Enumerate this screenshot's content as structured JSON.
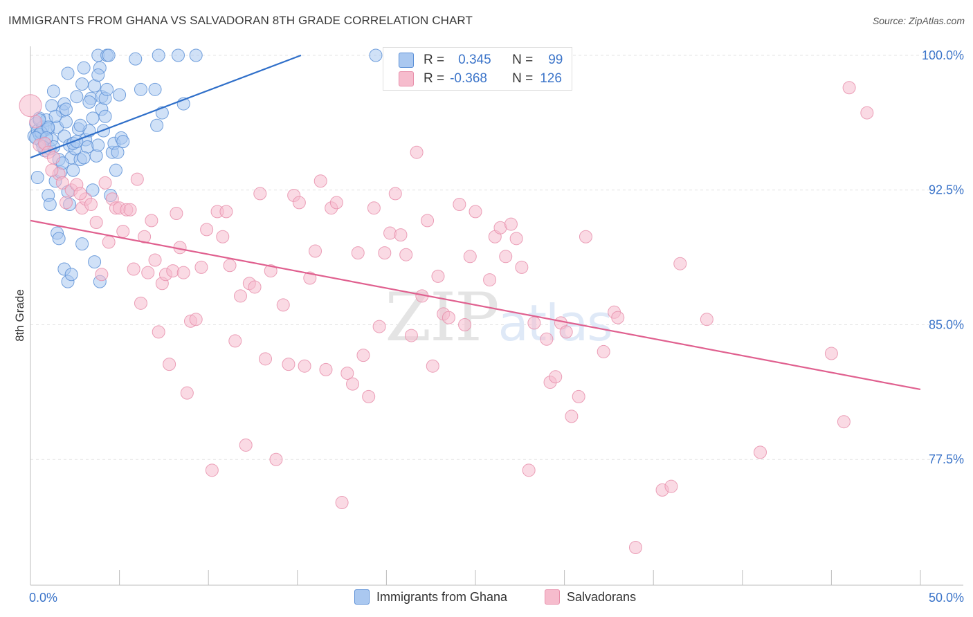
{
  "title": "IMMIGRANTS FROM GHANA VS SALVADORAN 8TH GRADE CORRELATION CHART",
  "source": "Source: ZipAtlas.com",
  "watermark": "ZIPatlas",
  "colors": {
    "blue_fill": "#aac8f0",
    "blue_stroke": "#5b8fd6",
    "blue_line": "#2f6fc9",
    "pink_fill": "#f6bccd",
    "pink_stroke": "#e88fab",
    "pink_line": "#e0608f",
    "tick_label": "#3b74c9",
    "grid": "#e3e3e3"
  },
  "stats": {
    "r_label": "R =",
    "n_label": "N =",
    "series1": {
      "r": "0.345",
      "n": "99"
    },
    "series2": {
      "r": "-0.368",
      "n": "126"
    }
  },
  "legend": {
    "series1": "Immigrants from Ghana",
    "series2": "Salvadorans"
  },
  "chart_data": {
    "type": "scatter",
    "title": "IMMIGRANTS FROM GHANA VS SALVADORAN 8TH GRADE CORRELATION CHART",
    "xlabel": "",
    "ylabel": "8th Grade",
    "xlim": [
      0,
      50
    ],
    "ylim": [
      70.5,
      100.5
    ],
    "x_tick_labels": [
      {
        "value": 0,
        "label": "0.0%"
      },
      {
        "value": 50,
        "label": "50.0%"
      }
    ],
    "y_ticks": [
      {
        "value": 100.0,
        "label": "100.0%"
      },
      {
        "value": 92.5,
        "label": "92.5%"
      },
      {
        "value": 85.0,
        "label": "85.0%"
      },
      {
        "value": 77.5,
        "label": "77.5%"
      }
    ],
    "grid": true,
    "legend_position": "bottom-center",
    "series": [
      {
        "name": "Immigrants from Ghana",
        "color": "#aac8f0",
        "trendline": {
          "x0": 0.0,
          "y0": 94.3,
          "x1": 15.2,
          "y1": 100.0
        },
        "points": [
          [
            0.2,
            95.5
          ],
          [
            0.3,
            96.2
          ],
          [
            0.4,
            95.8
          ],
          [
            0.5,
            96.5
          ],
          [
            0.6,
            95.2
          ],
          [
            0.7,
            96.0
          ],
          [
            0.8,
            94.7
          ],
          [
            0.9,
            96.4
          ],
          [
            0.4,
            93.2
          ],
          [
            0.5,
            95.6
          ],
          [
            1.0,
            95.9
          ],
          [
            1.1,
            94.8
          ],
          [
            1.2,
            95.3
          ],
          [
            1.0,
            92.2
          ],
          [
            1.1,
            91.7
          ],
          [
            1.2,
            97.2
          ],
          [
            1.3,
            98.0
          ],
          [
            1.4,
            93.0
          ],
          [
            1.5,
            96.0
          ],
          [
            1.6,
            94.2
          ],
          [
            1.7,
            93.5
          ],
          [
            1.8,
            96.9
          ],
          [
            1.9,
            97.3
          ],
          [
            2.0,
            96.3
          ],
          [
            1.9,
            95.5
          ],
          [
            2.1,
            92.4
          ],
          [
            2.1,
            99.0
          ],
          [
            2.2,
            95.0
          ],
          [
            2.3,
            94.3
          ],
          [
            2.4,
            93.6
          ],
          [
            2.5,
            94.8
          ],
          [
            2.6,
            97.7
          ],
          [
            2.7,
            95.9
          ],
          [
            2.8,
            94.2
          ],
          [
            2.9,
            98.4
          ],
          [
            3.0,
            99.3
          ],
          [
            3.1,
            95.3
          ],
          [
            3.2,
            94.9
          ],
          [
            3.3,
            95.8
          ],
          [
            3.4,
            97.6
          ],
          [
            3.5,
            96.5
          ],
          [
            3.6,
            98.3
          ],
          [
            3.7,
            94.4
          ],
          [
            3.8,
            95.0
          ],
          [
            3.8,
            100.0
          ],
          [
            3.9,
            99.3
          ],
          [
            4.0,
            97.0
          ],
          [
            4.0,
            97.7
          ],
          [
            4.1,
            95.8
          ],
          [
            4.2,
            96.6
          ],
          [
            4.2,
            97.6
          ],
          [
            4.3,
            98.1
          ],
          [
            4.3,
            100.0
          ],
          [
            4.4,
            100.0
          ],
          [
            4.5,
            92.2
          ],
          [
            4.6,
            94.6
          ],
          [
            4.7,
            95.1
          ],
          [
            4.8,
            93.6
          ],
          [
            4.9,
            94.6
          ],
          [
            5.0,
            97.8
          ],
          [
            5.1,
            95.4
          ],
          [
            5.2,
            95.2
          ],
          [
            5.9,
            99.8
          ],
          [
            6.2,
            98.1
          ],
          [
            7.0,
            98.1
          ],
          [
            7.1,
            96.1
          ],
          [
            7.2,
            100.0
          ],
          [
            7.4,
            96.8
          ],
          [
            8.3,
            100.0
          ],
          [
            8.6,
            97.3
          ],
          [
            9.3,
            100.0
          ],
          [
            19.4,
            100.0
          ],
          [
            1.5,
            90.1
          ],
          [
            1.6,
            89.8
          ],
          [
            1.9,
            88.1
          ],
          [
            2.1,
            87.4
          ],
          [
            2.3,
            87.8
          ],
          [
            2.9,
            89.5
          ],
          [
            3.6,
            88.5
          ],
          [
            3.9,
            87.4
          ],
          [
            2.2,
            91.7
          ],
          [
            3.5,
            92.5
          ],
          [
            0.8,
            95.1
          ],
          [
            1.3,
            94.9
          ],
          [
            2.4,
            95.1
          ],
          [
            0.6,
            95.7
          ],
          [
            1.0,
            96.0
          ],
          [
            0.3,
            95.4
          ],
          [
            0.5,
            96.4
          ],
          [
            1.8,
            94.0
          ],
          [
            2.6,
            95.2
          ],
          [
            3.0,
            94.3
          ],
          [
            0.9,
            95.4
          ],
          [
            1.4,
            96.6
          ],
          [
            2.0,
            97.0
          ],
          [
            2.8,
            96.1
          ],
          [
            3.3,
            97.4
          ],
          [
            3.8,
            98.9
          ],
          [
            0.7,
            94.9
          ]
        ]
      },
      {
        "name": "Salvadorans",
        "color": "#f6bccd",
        "trendline": {
          "x0": 0.0,
          "y0": 90.8,
          "x1": 50.0,
          "y1": 81.4
        },
        "points": [
          [
            0.0,
            97.2
          ],
          [
            0.3,
            96.3
          ],
          [
            0.5,
            95.0
          ],
          [
            0.8,
            95.1
          ],
          [
            1.0,
            94.6
          ],
          [
            1.3,
            94.3
          ],
          [
            1.6,
            93.4
          ],
          [
            1.8,
            92.9
          ],
          [
            2.0,
            91.8
          ],
          [
            2.3,
            92.5
          ],
          [
            2.6,
            92.8
          ],
          [
            2.9,
            91.5
          ],
          [
            3.1,
            92.0
          ],
          [
            3.4,
            91.7
          ],
          [
            3.7,
            90.7
          ],
          [
            4.0,
            87.8
          ],
          [
            4.2,
            92.9
          ],
          [
            4.4,
            89.6
          ],
          [
            4.6,
            92.0
          ],
          [
            4.8,
            91.5
          ],
          [
            5.0,
            91.5
          ],
          [
            5.2,
            90.2
          ],
          [
            5.4,
            91.4
          ],
          [
            5.6,
            91.4
          ],
          [
            5.8,
            88.1
          ],
          [
            6.0,
            93.1
          ],
          [
            6.2,
            86.2
          ],
          [
            6.4,
            89.9
          ],
          [
            6.6,
            87.9
          ],
          [
            6.8,
            90.8
          ],
          [
            7.0,
            88.6
          ],
          [
            7.2,
            84.6
          ],
          [
            7.4,
            87.3
          ],
          [
            7.6,
            87.8
          ],
          [
            7.8,
            82.8
          ],
          [
            8.0,
            88.0
          ],
          [
            8.2,
            91.2
          ],
          [
            8.4,
            89.3
          ],
          [
            8.6,
            87.9
          ],
          [
            8.8,
            81.2
          ],
          [
            9.0,
            85.2
          ],
          [
            9.3,
            85.3
          ],
          [
            9.6,
            88.2
          ],
          [
            9.9,
            90.3
          ],
          [
            10.2,
            76.9
          ],
          [
            10.5,
            91.3
          ],
          [
            10.8,
            89.9
          ],
          [
            11.0,
            91.3
          ],
          [
            11.2,
            88.3
          ],
          [
            11.5,
            84.1
          ],
          [
            11.8,
            86.6
          ],
          [
            12.1,
            78.3
          ],
          [
            12.3,
            87.3
          ],
          [
            12.6,
            87.1
          ],
          [
            12.9,
            92.3
          ],
          [
            13.2,
            83.1
          ],
          [
            13.5,
            88.0
          ],
          [
            13.8,
            77.5
          ],
          [
            14.2,
            86.1
          ],
          [
            14.5,
            82.8
          ],
          [
            14.8,
            92.2
          ],
          [
            15.1,
            91.8
          ],
          [
            15.4,
            82.7
          ],
          [
            15.7,
            87.6
          ],
          [
            16.0,
            89.1
          ],
          [
            16.3,
            93.0
          ],
          [
            16.6,
            82.5
          ],
          [
            16.9,
            91.5
          ],
          [
            17.2,
            91.8
          ],
          [
            17.5,
            75.1
          ],
          [
            17.8,
            82.3
          ],
          [
            18.1,
            81.7
          ],
          [
            18.4,
            89.0
          ],
          [
            18.7,
            83.3
          ],
          [
            19.0,
            81.0
          ],
          [
            19.3,
            91.5
          ],
          [
            19.6,
            84.9
          ],
          [
            19.9,
            89.0
          ],
          [
            20.2,
            90.1
          ],
          [
            20.5,
            92.3
          ],
          [
            20.8,
            90.0
          ],
          [
            21.1,
            88.9
          ],
          [
            21.4,
            84.4
          ],
          [
            21.7,
            94.6
          ],
          [
            22.0,
            86.6
          ],
          [
            22.3,
            90.8
          ],
          [
            22.6,
            82.7
          ],
          [
            22.9,
            87.7
          ],
          [
            23.2,
            85.6
          ],
          [
            23.5,
            85.4
          ],
          [
            24.1,
            91.7
          ],
          [
            24.4,
            85.0
          ],
          [
            24.7,
            88.8
          ],
          [
            25.0,
            91.3
          ],
          [
            25.8,
            87.5
          ],
          [
            26.1,
            89.9
          ],
          [
            26.4,
            90.4
          ],
          [
            26.7,
            88.8
          ],
          [
            27.0,
            90.6
          ],
          [
            27.3,
            89.8
          ],
          [
            27.6,
            88.2
          ],
          [
            28.0,
            76.9
          ],
          [
            28.3,
            85.1
          ],
          [
            29.0,
            84.2
          ],
          [
            29.2,
            81.8
          ],
          [
            29.5,
            82.1
          ],
          [
            29.8,
            85.1
          ],
          [
            30.1,
            84.6
          ],
          [
            30.4,
            79.9
          ],
          [
            30.8,
            81.0
          ],
          [
            31.2,
            89.9
          ],
          [
            32.2,
            83.5
          ],
          [
            32.8,
            85.7
          ],
          [
            33.0,
            85.4
          ],
          [
            34.0,
            72.6
          ],
          [
            35.5,
            75.8
          ],
          [
            36.0,
            76.0
          ],
          [
            36.5,
            88.4
          ],
          [
            38.0,
            85.3
          ],
          [
            41.0,
            77.9
          ],
          [
            45.0,
            83.4
          ],
          [
            45.7,
            79.6
          ],
          [
            46.0,
            98.2
          ],
          [
            47.0,
            96.8
          ],
          [
            1.2,
            93.6
          ],
          [
            2.8,
            92.3
          ]
        ]
      }
    ]
  }
}
